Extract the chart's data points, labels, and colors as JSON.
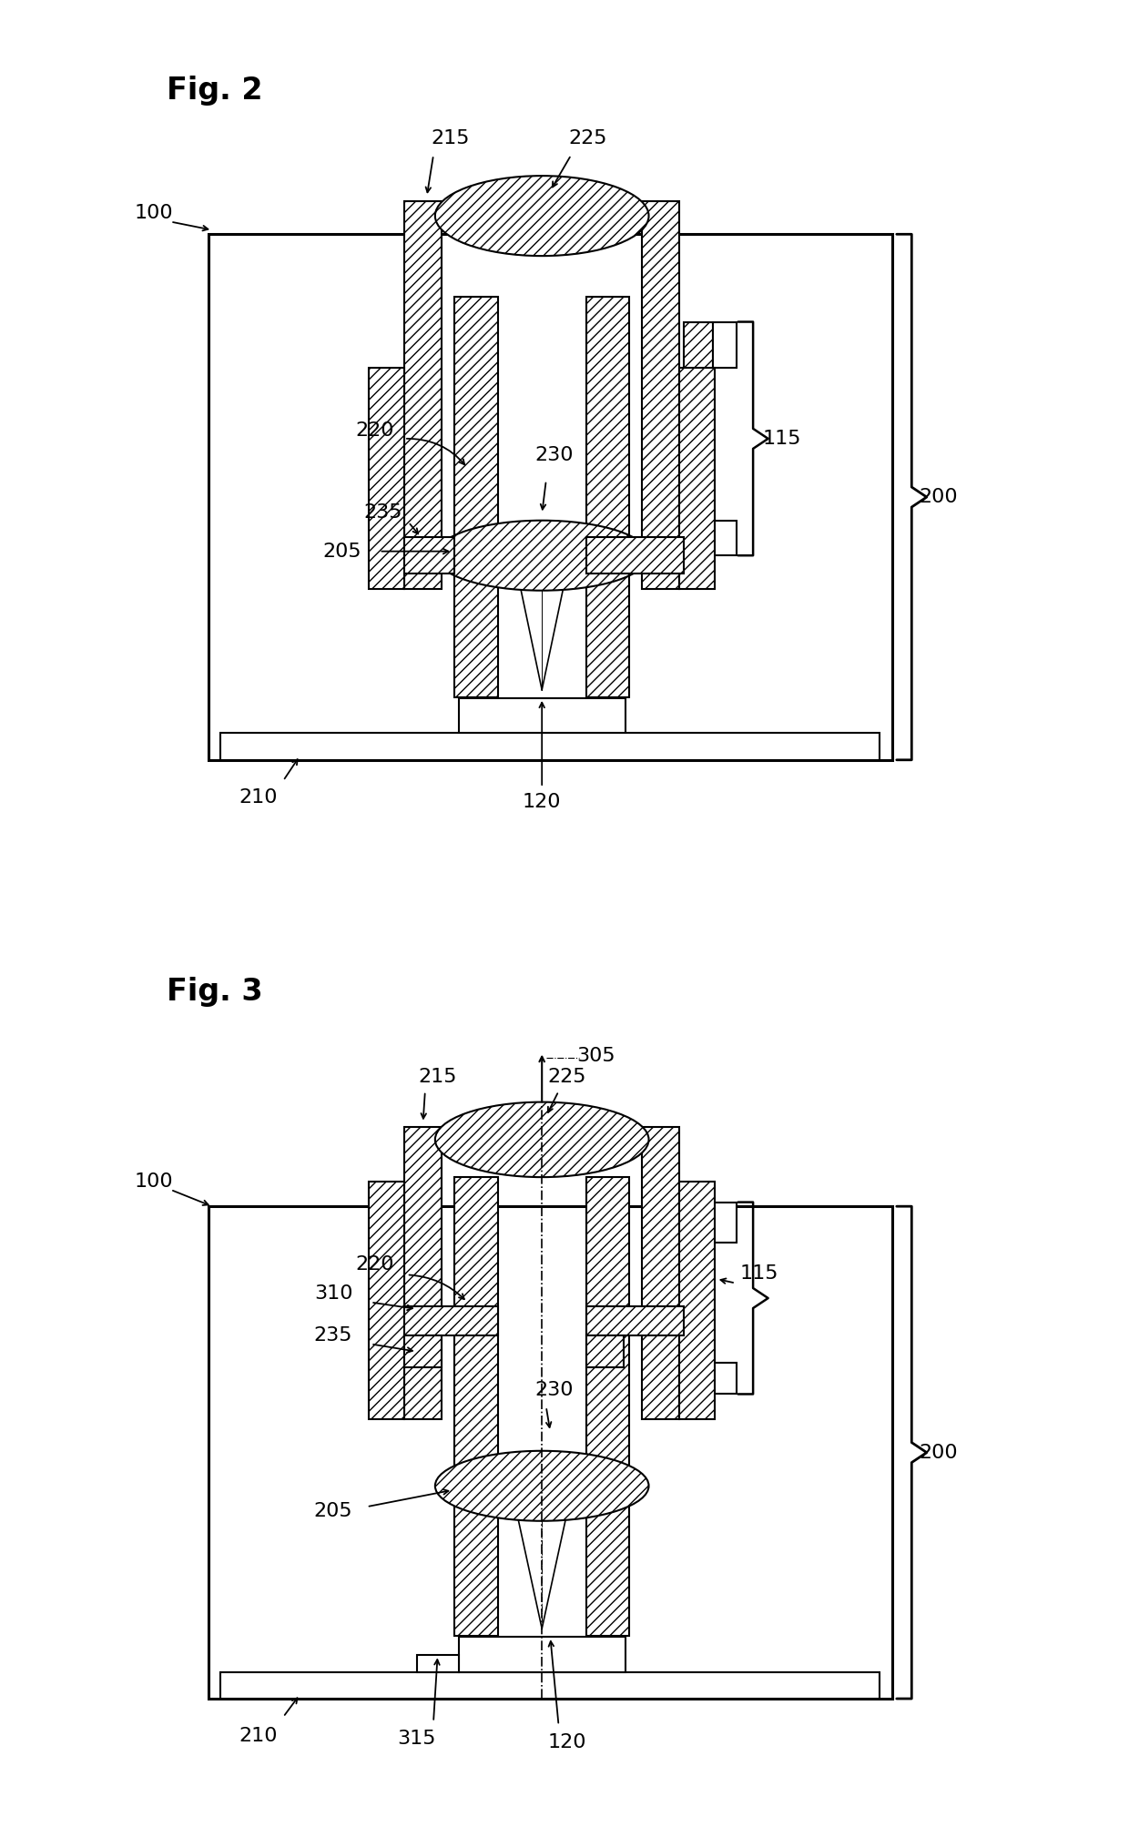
{
  "fig_width": 12.4,
  "fig_height": 20.07,
  "bg_color": "#ffffff",
  "fig2_title": "Fig. 2",
  "fig3_title": "Fig. 3",
  "label_fontsize": 16,
  "title_fontsize": 24
}
